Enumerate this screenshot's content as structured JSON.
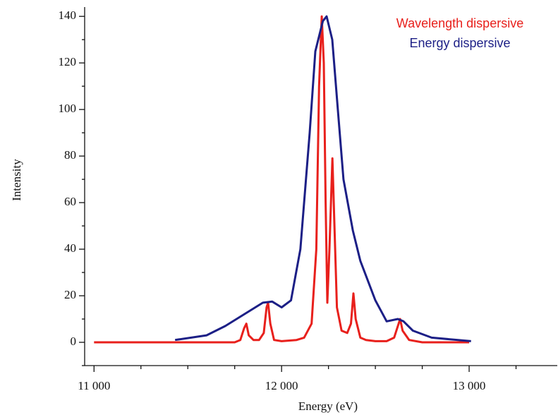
{
  "chart_data": {
    "type": "line",
    "x_label": "Energy (eV)",
    "y_label": "Intensity",
    "xlim": [
      10950,
      13470
    ],
    "ylim": [
      -10,
      144
    ],
    "xticks": [
      {
        "value": 11000,
        "label": "11 000"
      },
      {
        "value": 12000,
        "label": "12 000"
      },
      {
        "value": 13000,
        "label": "13 000"
      }
    ],
    "xminorticks": [
      11250,
      11500,
      11750,
      12250,
      12500,
      12750,
      13250
    ],
    "yticks": [
      0,
      20,
      40,
      60,
      80,
      100,
      120,
      140
    ],
    "yminorticks": [
      -10,
      10,
      30,
      50,
      70,
      90,
      110,
      130
    ],
    "legend": "top-right",
    "series": [
      {
        "name": "Wavelength dispersive",
        "color": "#e8201c",
        "x": [
          11000,
          11750,
          11780,
          11800,
          11812,
          11825,
          11850,
          11880,
          11905,
          11920,
          11928,
          11940,
          11960,
          12000,
          12080,
          12120,
          12160,
          12185,
          12200,
          12214,
          12225,
          12235,
          12244,
          12255,
          12271,
          12282,
          12295,
          12320,
          12350,
          12370,
          12383,
          12395,
          12420,
          12450,
          12500,
          12560,
          12600,
          12620,
          12632,
          12645,
          12680,
          12750,
          13000
        ],
        "values": [
          0,
          0,
          1,
          6,
          8,
          3,
          1,
          1,
          4,
          15,
          17,
          8,
          1,
          0.5,
          1,
          2,
          8,
          40,
          110,
          140,
          120,
          60,
          17,
          40,
          79,
          50,
          15,
          5,
          4,
          8,
          21,
          10,
          2,
          1,
          0.5,
          0.5,
          2,
          7,
          10,
          5,
          1,
          0,
          0
        ]
      },
      {
        "name": "Energy dispersive",
        "color": "#1c1f86",
        "x": [
          11432,
          11600,
          11700,
          11800,
          11900,
          11950,
          12000,
          12050,
          12100,
          12150,
          12180,
          12220,
          12240,
          12270,
          12300,
          12330,
          12380,
          12420,
          12500,
          12560,
          12620,
          12650,
          12700,
          12800,
          13010
        ],
        "values": [
          1,
          3,
          7,
          12,
          17,
          17.5,
          15,
          18,
          40,
          90,
          125,
          138,
          140,
          130,
          100,
          70,
          48,
          35,
          18,
          9,
          10,
          9,
          5,
          2,
          0.5
        ]
      }
    ]
  }
}
